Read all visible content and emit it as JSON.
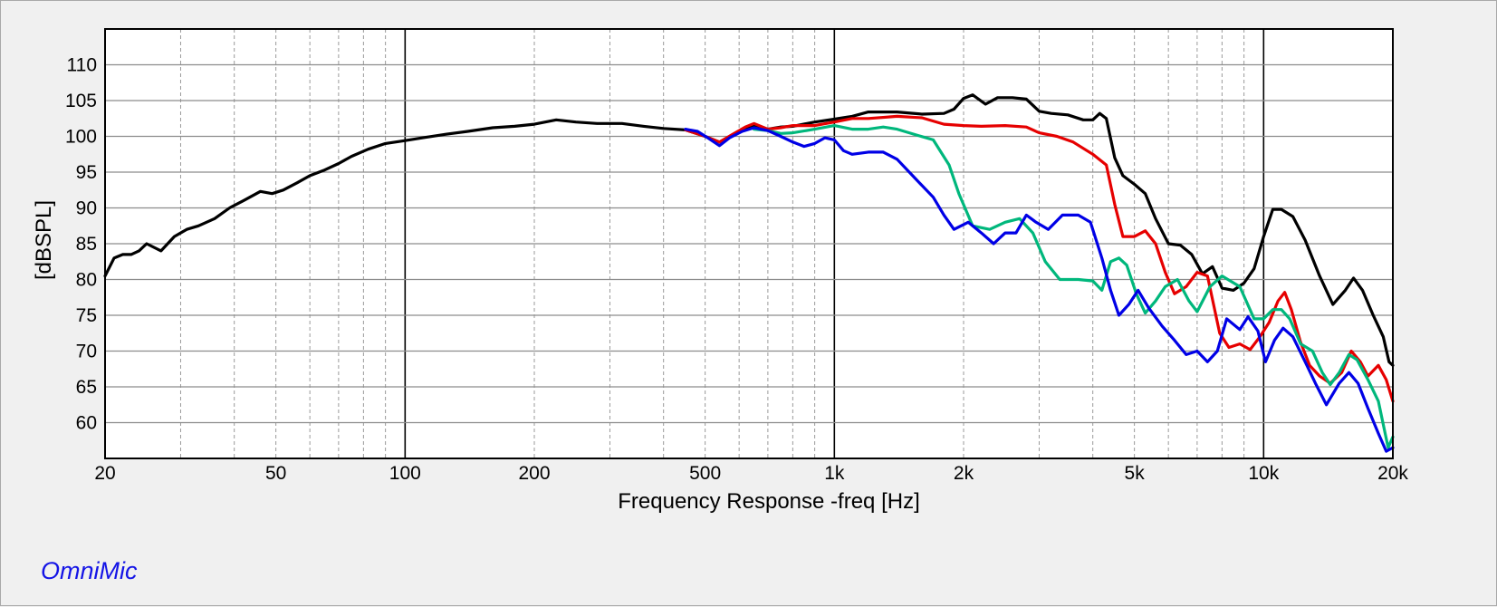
{
  "brand": "OmniMic",
  "chart_data": {
    "type": "line",
    "title": "",
    "xlabel": "Frequency Response -freq [Hz]",
    "ylabel": "[dBSPL]",
    "xscale": "log",
    "xlim": [
      20,
      20000
    ],
    "ylim": [
      55,
      115
    ],
    "grid": true,
    "legend": "none",
    "x_ticks": [
      {
        "value": 20,
        "label": "20"
      },
      {
        "value": 50,
        "label": "50"
      },
      {
        "value": 100,
        "label": "100"
      },
      {
        "value": 200,
        "label": "200"
      },
      {
        "value": 500,
        "label": "500"
      },
      {
        "value": 1000,
        "label": "1k"
      },
      {
        "value": 2000,
        "label": "2k"
      },
      {
        "value": 5000,
        "label": "5k"
      },
      {
        "value": 10000,
        "label": "10k"
      },
      {
        "value": 20000,
        "label": "20k"
      }
    ],
    "y_ticks": [
      {
        "value": 60,
        "label": "60"
      },
      {
        "value": 65,
        "label": "65"
      },
      {
        "value": 70,
        "label": "70"
      },
      {
        "value": 75,
        "label": "75"
      },
      {
        "value": 80,
        "label": "80"
      },
      {
        "value": 85,
        "label": "85"
      },
      {
        "value": 90,
        "label": "90"
      },
      {
        "value": 95,
        "label": "95"
      },
      {
        "value": 100,
        "label": "100"
      },
      {
        "value": 105,
        "label": "105"
      },
      {
        "value": 110,
        "label": "110"
      }
    ],
    "series": [
      {
        "color": "#000000",
        "points": [
          [
            20,
            80.5
          ],
          [
            21,
            83
          ],
          [
            22,
            83.5
          ],
          [
            23,
            83.5
          ],
          [
            24,
            84
          ],
          [
            25,
            85
          ],
          [
            27,
            84
          ],
          [
            29,
            86
          ],
          [
            31,
            87
          ],
          [
            33,
            87.5
          ],
          [
            36,
            88.5
          ],
          [
            39,
            90
          ],
          [
            42,
            91
          ],
          [
            46,
            92.3
          ],
          [
            49,
            92
          ],
          [
            52,
            92.5
          ],
          [
            56,
            93.5
          ],
          [
            60,
            94.5
          ],
          [
            65,
            95.3
          ],
          [
            70,
            96.2
          ],
          [
            75,
            97.2
          ],
          [
            82,
            98.2
          ],
          [
            90,
            99
          ],
          [
            100,
            99.4
          ],
          [
            110,
            99.8
          ],
          [
            125,
            100.3
          ],
          [
            140,
            100.7
          ],
          [
            160,
            101.2
          ],
          [
            180,
            101.4
          ],
          [
            200,
            101.7
          ],
          [
            225,
            102.3
          ],
          [
            250,
            102
          ],
          [
            280,
            101.8
          ],
          [
            320,
            101.8
          ],
          [
            360,
            101.4
          ],
          [
            400,
            101.1
          ],
          [
            450,
            100.9
          ],
          [
            500,
            100
          ],
          [
            540,
            99.2
          ],
          [
            580,
            100.2
          ],
          [
            620,
            101
          ],
          [
            650,
            101.5
          ],
          [
            700,
            101
          ],
          [
            750,
            101.3
          ],
          [
            800,
            101.4
          ],
          [
            900,
            102
          ],
          [
            1000,
            102.4
          ],
          [
            1100,
            102.8
          ],
          [
            1200,
            103.4
          ],
          [
            1400,
            103.4
          ],
          [
            1600,
            103.1
          ],
          [
            1800,
            103.2
          ],
          [
            1900,
            103.8
          ],
          [
            2000,
            105.3
          ],
          [
            2100,
            105.8
          ],
          [
            2250,
            104.5
          ],
          [
            2400,
            105.4
          ],
          [
            2600,
            105.4
          ],
          [
            2800,
            105.2
          ],
          [
            3000,
            103.5
          ],
          [
            3200,
            103.2
          ],
          [
            3500,
            103
          ],
          [
            3800,
            102.3
          ],
          [
            4000,
            102.3
          ],
          [
            4150,
            103.2
          ],
          [
            4300,
            102.5
          ],
          [
            4500,
            97
          ],
          [
            4700,
            94.5
          ],
          [
            5000,
            93.3
          ],
          [
            5300,
            92
          ],
          [
            5600,
            88.5
          ],
          [
            6000,
            85
          ],
          [
            6400,
            84.8
          ],
          [
            6800,
            83.5
          ],
          [
            7200,
            80.8
          ],
          [
            7600,
            81.8
          ],
          [
            8000,
            78.8
          ],
          [
            8500,
            78.5
          ],
          [
            9000,
            79.5
          ],
          [
            9500,
            81.5
          ],
          [
            10000,
            86
          ],
          [
            10500,
            89.8
          ],
          [
            11000,
            89.8
          ],
          [
            11700,
            88.8
          ],
          [
            12500,
            85.5
          ],
          [
            13500,
            80.5
          ],
          [
            14500,
            76.5
          ],
          [
            15500,
            78.5
          ],
          [
            16200,
            80.2
          ],
          [
            17000,
            78.5
          ],
          [
            18000,
            75
          ],
          [
            19000,
            72
          ],
          [
            19600,
            68.5
          ],
          [
            20000,
            68
          ]
        ]
      },
      {
        "color": "#e60000",
        "points": [
          [
            450,
            100.9
          ],
          [
            500,
            100
          ],
          [
            540,
            99.2
          ],
          [
            580,
            100.3
          ],
          [
            620,
            101.3
          ],
          [
            650,
            101.8
          ],
          [
            700,
            101
          ],
          [
            750,
            101.2
          ],
          [
            800,
            101.5
          ],
          [
            900,
            101.5
          ],
          [
            1000,
            102
          ],
          [
            1100,
            102.5
          ],
          [
            1200,
            102.5
          ],
          [
            1400,
            102.8
          ],
          [
            1600,
            102.6
          ],
          [
            1800,
            101.7
          ],
          [
            2000,
            101.5
          ],
          [
            2200,
            101.4
          ],
          [
            2500,
            101.5
          ],
          [
            2800,
            101.3
          ],
          [
            3000,
            100.5
          ],
          [
            3300,
            100
          ],
          [
            3600,
            99.2
          ],
          [
            4000,
            97.5
          ],
          [
            4300,
            96
          ],
          [
            4500,
            90.5
          ],
          [
            4700,
            86
          ],
          [
            5000,
            86
          ],
          [
            5300,
            86.8
          ],
          [
            5600,
            85
          ],
          [
            5900,
            81
          ],
          [
            6200,
            78
          ],
          [
            6600,
            79
          ],
          [
            7000,
            81
          ],
          [
            7400,
            80.5
          ],
          [
            7900,
            72.5
          ],
          [
            8300,
            70.5
          ],
          [
            8800,
            71
          ],
          [
            9300,
            70.2
          ],
          [
            9800,
            72
          ],
          [
            10300,
            74
          ],
          [
            10800,
            77
          ],
          [
            11200,
            78.2
          ],
          [
            11600,
            75.8
          ],
          [
            12200,
            71.2
          ],
          [
            12800,
            68
          ],
          [
            13500,
            66.5
          ],
          [
            14300,
            65.5
          ],
          [
            15200,
            67
          ],
          [
            16000,
            70
          ],
          [
            16800,
            68.5
          ],
          [
            17500,
            66.5
          ],
          [
            18500,
            68
          ],
          [
            19300,
            66
          ],
          [
            20000,
            63
          ]
        ]
      },
      {
        "color": "#00b77c",
        "points": [
          [
            650,
            101
          ],
          [
            700,
            100.8
          ],
          [
            750,
            100.4
          ],
          [
            800,
            100.5
          ],
          [
            900,
            101
          ],
          [
            1000,
            101.5
          ],
          [
            1100,
            101
          ],
          [
            1200,
            101
          ],
          [
            1300,
            101.3
          ],
          [
            1400,
            101
          ],
          [
            1550,
            100.2
          ],
          [
            1700,
            99.5
          ],
          [
            1850,
            96
          ],
          [
            1950,
            92
          ],
          [
            2100,
            87.5
          ],
          [
            2300,
            87
          ],
          [
            2500,
            88
          ],
          [
            2700,
            88.5
          ],
          [
            2900,
            86.5
          ],
          [
            3100,
            82.5
          ],
          [
            3350,
            80
          ],
          [
            3700,
            80
          ],
          [
            4000,
            79.8
          ],
          [
            4200,
            78.5
          ],
          [
            4400,
            82.5
          ],
          [
            4600,
            83
          ],
          [
            4800,
            82
          ],
          [
            5050,
            78
          ],
          [
            5300,
            75.3
          ],
          [
            5600,
            77
          ],
          [
            5900,
            79
          ],
          [
            6300,
            80
          ],
          [
            6700,
            77
          ],
          [
            7000,
            75.5
          ],
          [
            7500,
            79
          ],
          [
            8000,
            80.5
          ],
          [
            8800,
            79
          ],
          [
            9500,
            74.5
          ],
          [
            10000,
            74.5
          ],
          [
            10500,
            75.8
          ],
          [
            11000,
            75.8
          ],
          [
            11500,
            74.5
          ],
          [
            12200,
            71
          ],
          [
            13000,
            70
          ],
          [
            13700,
            67
          ],
          [
            14300,
            65.3
          ],
          [
            15000,
            67
          ],
          [
            15800,
            69.5
          ],
          [
            16500,
            68.8
          ],
          [
            17500,
            66
          ],
          [
            18500,
            63
          ],
          [
            19500,
            56.5
          ],
          [
            20000,
            58
          ]
        ]
      },
      {
        "color": "#0000e6",
        "points": [
          [
            450,
            101
          ],
          [
            480,
            100.7
          ],
          [
            510,
            99.7
          ],
          [
            540,
            98.7
          ],
          [
            570,
            99.8
          ],
          [
            610,
            100.7
          ],
          [
            650,
            101.2
          ],
          [
            700,
            100.8
          ],
          [
            750,
            100
          ],
          [
            800,
            99.2
          ],
          [
            850,
            98.6
          ],
          [
            900,
            99
          ],
          [
            950,
            99.8
          ],
          [
            1000,
            99.5
          ],
          [
            1050,
            98
          ],
          [
            1100,
            97.5
          ],
          [
            1200,
            97.8
          ],
          [
            1300,
            97.8
          ],
          [
            1400,
            96.8
          ],
          [
            1550,
            94
          ],
          [
            1700,
            91.5
          ],
          [
            1800,
            89
          ],
          [
            1900,
            87
          ],
          [
            2050,
            88
          ],
          [
            2200,
            86.5
          ],
          [
            2350,
            85
          ],
          [
            2500,
            86.5
          ],
          [
            2650,
            86.5
          ],
          [
            2800,
            89
          ],
          [
            2950,
            88
          ],
          [
            3150,
            87
          ],
          [
            3400,
            89
          ],
          [
            3700,
            89
          ],
          [
            3950,
            88
          ],
          [
            4200,
            83
          ],
          [
            4400,
            78.5
          ],
          [
            4600,
            75
          ],
          [
            4850,
            76.5
          ],
          [
            5100,
            78.5
          ],
          [
            5400,
            76
          ],
          [
            5800,
            73.5
          ],
          [
            6200,
            71.5
          ],
          [
            6600,
            69.5
          ],
          [
            7000,
            70
          ],
          [
            7400,
            68.5
          ],
          [
            7800,
            70
          ],
          [
            8200,
            74.5
          ],
          [
            8800,
            73
          ],
          [
            9200,
            74.8
          ],
          [
            9700,
            72.8
          ],
          [
            10100,
            68.5
          ],
          [
            10600,
            71.5
          ],
          [
            11100,
            73.2
          ],
          [
            11700,
            72
          ],
          [
            12500,
            68.5
          ],
          [
            13200,
            65.5
          ],
          [
            14000,
            62.5
          ],
          [
            15000,
            65.5
          ],
          [
            15800,
            67
          ],
          [
            16600,
            65.5
          ],
          [
            17500,
            62
          ],
          [
            18500,
            58.5
          ],
          [
            19300,
            56
          ],
          [
            20000,
            56.5
          ]
        ]
      }
    ]
  }
}
